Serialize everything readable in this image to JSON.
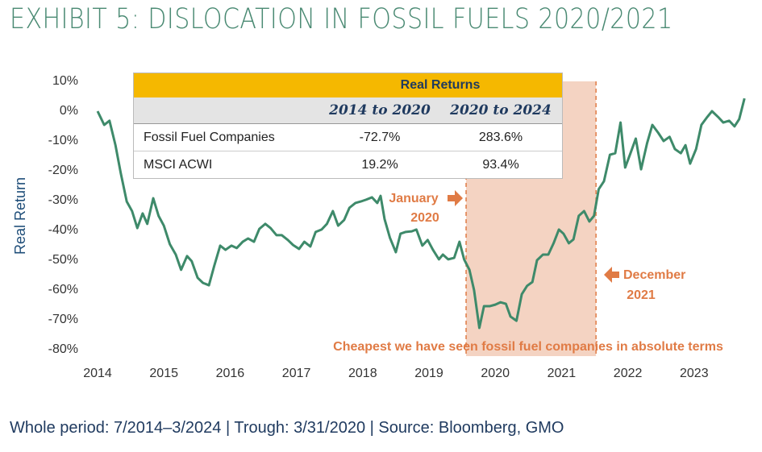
{
  "chart_data": {
    "type": "line",
    "title": "EXHIBIT 5: DISLOCATION IN FOSSIL FUELS 2020/2021",
    "footnote": "Whole period: 7/2014–3/2024 | Trough: 3/31/2020 | Source: Bloomberg, GMO",
    "y_label": "Real Return",
    "xlim": [
      2014,
      2023.8
    ],
    "xticks": [
      2014,
      2015,
      2016,
      2017,
      2018,
      2019,
      2020,
      2021,
      2022,
      2023
    ],
    "ylim": [
      -80,
      10
    ],
    "yticks": [
      {
        "value": 10,
        "label": "10%"
      },
      {
        "value": 0,
        "label": "0%"
      },
      {
        "value": -10,
        "label": "-10%"
      },
      {
        "value": -20,
        "label": "-20%"
      },
      {
        "value": -30,
        "label": "-30%"
      },
      {
        "value": -40,
        "label": "-40%"
      },
      {
        "value": -50,
        "label": "-50%"
      },
      {
        "value": -60,
        "label": "-60%"
      },
      {
        "value": -70,
        "label": "-70%"
      },
      {
        "value": -80,
        "label": "-80%"
      }
    ],
    "grid": false,
    "highlight_x": [
      2019.56,
      2021.52
    ],
    "highlight_color": "#f4d3c2",
    "annotation_color": "#e07b45",
    "series": [
      {
        "name": "Fossil Fuel Companies",
        "color": "#3e8a6a",
        "x": [
          2014.0,
          2014.1,
          2014.18,
          2014.27,
          2014.35,
          2014.44,
          2014.52,
          2014.6,
          2014.68,
          2014.75,
          2014.84,
          2014.92,
          2015.0,
          2015.09,
          2015.18,
          2015.26,
          2015.35,
          2015.42,
          2015.51,
          2015.59,
          2015.68,
          2015.76,
          2015.85,
          2015.93,
          2016.02,
          2016.1,
          2016.19,
          2016.27,
          2016.36,
          2016.44,
          2016.53,
          2016.61,
          2016.7,
          2016.78,
          2016.87,
          2016.95,
          2017.04,
          2017.12,
          2017.21,
          2017.29,
          2017.38,
          2017.46,
          2017.55,
          2017.63,
          2017.72,
          2017.8,
          2017.89,
          2017.97,
          2018.05,
          2018.14,
          2018.22,
          2018.27,
          2018.33,
          2018.41,
          2018.5,
          2018.57,
          2018.65,
          2018.74,
          2018.81,
          2018.9,
          2018.98,
          2019.06,
          2019.15,
          2019.21,
          2019.29,
          2019.38,
          2019.46,
          2019.53,
          2019.61,
          2019.68,
          2019.76,
          2019.83,
          2019.92,
          2020.0,
          2020.08,
          2020.16,
          2020.23,
          2020.32,
          2020.4,
          2020.48,
          2020.56,
          2020.63,
          2020.72,
          2020.8,
          2020.88,
          2020.96,
          2021.03,
          2021.11,
          2021.18,
          2021.26,
          2021.34,
          2021.42,
          2021.49,
          2021.56,
          2021.64,
          2021.73,
          2021.81,
          2021.89,
          2021.96,
          2022.04,
          2022.12,
          2022.2,
          2022.29,
          2022.37,
          2022.46,
          2022.54,
          2022.63,
          2022.71,
          2022.8,
          2022.87,
          2022.94,
          2023.03,
          2023.11,
          2023.2,
          2023.27,
          2023.36,
          2023.44,
          2023.53,
          2023.61,
          2023.68,
          2023.76
        ],
        "values": [
          0,
          -4.6,
          -3.2,
          -11.4,
          -20.8,
          -30.3,
          -33.5,
          -39.2,
          -34.3,
          -37.8,
          -29.2,
          -35.1,
          -38.4,
          -44.6,
          -48.1,
          -53.2,
          -48.6,
          -50.3,
          -55.9,
          -57.6,
          -58.4,
          -51.9,
          -45.1,
          -46.5,
          -45.1,
          -45.9,
          -43.8,
          -42.7,
          -43.8,
          -39.5,
          -37.8,
          -39.2,
          -41.6,
          -41.6,
          -43.2,
          -44.9,
          -46.2,
          -43.8,
          -45.4,
          -40.5,
          -39.7,
          -37.8,
          -33.5,
          -38.4,
          -36.5,
          -32.4,
          -30.8,
          -30.3,
          -29.7,
          -28.9,
          -30.8,
          -28.4,
          -36.2,
          -42.4,
          -47.3,
          -41.1,
          -40.5,
          -40.3,
          -39.7,
          -45.1,
          -43.2,
          -46.5,
          -49.7,
          -48.1,
          -49.7,
          -49.2,
          -43.8,
          -49.7,
          -53.2,
          -60,
          -72.7,
          -65.4,
          -65.4,
          -64.9,
          -64.1,
          -64.6,
          -68.9,
          -70.3,
          -61.4,
          -58.6,
          -57.3,
          -50,
          -48.1,
          -48.1,
          -44.3,
          -39.7,
          -41.1,
          -44.3,
          -43,
          -35.1,
          -33.5,
          -37,
          -35.1,
          -26.2,
          -23.5,
          -14.6,
          -14.1,
          -3.8,
          -18.9,
          -14.1,
          -9.2,
          -19.5,
          -10.8,
          -4.6,
          -7.3,
          -10,
          -8.6,
          -12.7,
          -14.1,
          -11.4,
          -17.6,
          -12.7,
          -4.6,
          -1.9,
          0,
          -1.9,
          -3.8,
          -3.2,
          -5.1,
          -2.7,
          4.3
        ]
      }
    ],
    "annotations": [
      {
        "lines": [
          "January",
          "2020"
        ]
      },
      {
        "lines": [
          "December",
          "2021"
        ]
      },
      {
        "lines": [
          "Cheapest we have seen fossil fuel companies in absolute terms"
        ]
      }
    ],
    "table": {
      "title": "Real Returns",
      "columns": [
        "2014 to 2020",
        "2020 to 2024"
      ],
      "rows": [
        {
          "label": "Fossil Fuel Companies",
          "cells": [
            "-72.7%",
            "283.6%"
          ]
        },
        {
          "label": "MSCI ACWI",
          "cells": [
            "19.2%",
            "93.4%"
          ]
        }
      ]
    }
  }
}
